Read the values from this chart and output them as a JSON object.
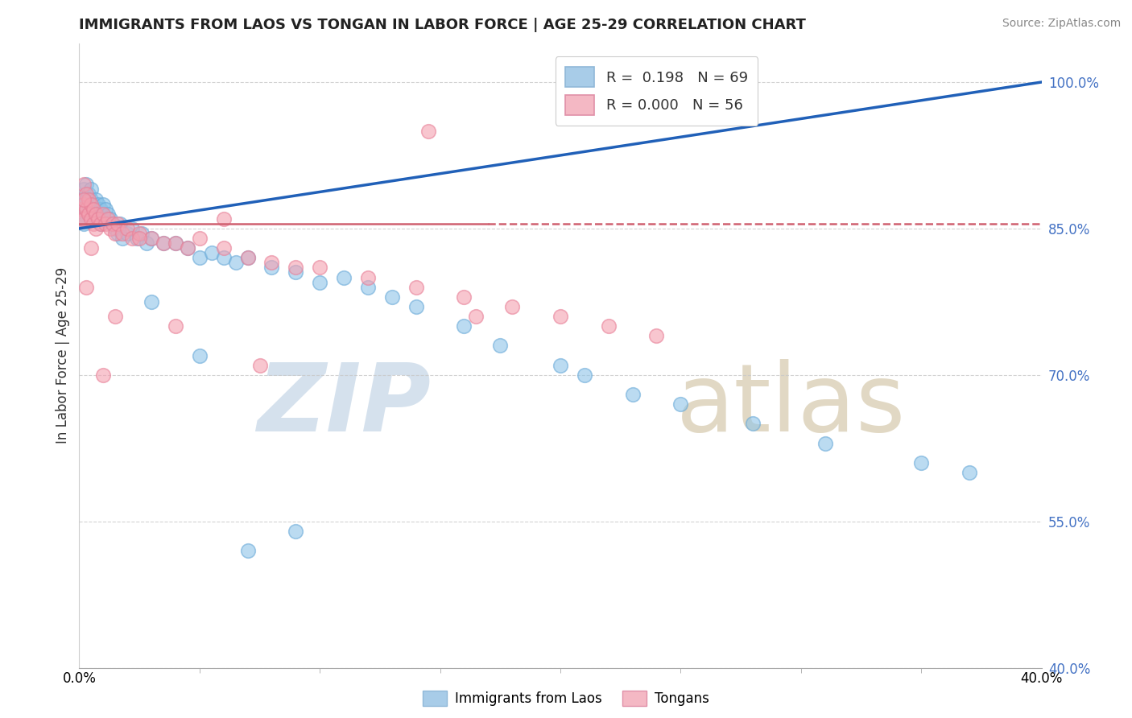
{
  "title": "IMMIGRANTS FROM LAOS VS TONGAN IN LABOR FORCE | AGE 25-29 CORRELATION CHART",
  "source": "Source: ZipAtlas.com",
  "ylabel": "In Labor Force | Age 25-29",
  "xlim": [
    0.0,
    0.4
  ],
  "ylim": [
    0.4,
    1.04
  ],
  "yticks": [
    0.4,
    0.55,
    0.7,
    0.85,
    1.0
  ],
  "yticklabels": [
    "40.0%",
    "55.0%",
    "70.0%",
    "85.0%",
    "100.0%"
  ],
  "blue_scatter_color": "#8ec4e8",
  "blue_scatter_edge": "#6aaad8",
  "pink_scatter_color": "#f4a0b0",
  "pink_scatter_edge": "#e88098",
  "blue_line_color": "#2060b8",
  "pink_line_color": "#d06070",
  "blue_legend_color": "#a8cce8",
  "pink_legend_color": "#f4b8c4",
  "grid_color": "#c8c8c8",
  "tick_color": "#4472c4",
  "r_label_color": "#4472c4",
  "laos_x": [
    0.001,
    0.001,
    0.001,
    0.002,
    0.002,
    0.002,
    0.002,
    0.003,
    0.003,
    0.003,
    0.004,
    0.004,
    0.004,
    0.005,
    0.005,
    0.005,
    0.006,
    0.006,
    0.007,
    0.007,
    0.008,
    0.008,
    0.009,
    0.009,
    0.01,
    0.01,
    0.011,
    0.012,
    0.013,
    0.014,
    0.015,
    0.016,
    0.017,
    0.018,
    0.02,
    0.022,
    0.024,
    0.026,
    0.028,
    0.03,
    0.035,
    0.04,
    0.045,
    0.05,
    0.055,
    0.06,
    0.065,
    0.07,
    0.08,
    0.09,
    0.1,
    0.11,
    0.12,
    0.13,
    0.14,
    0.16,
    0.175,
    0.2,
    0.21,
    0.23,
    0.25,
    0.28,
    0.31,
    0.35,
    0.37,
    0.09,
    0.07,
    0.05,
    0.03
  ],
  "laos_y": [
    0.88,
    0.87,
    0.86,
    0.89,
    0.875,
    0.865,
    0.855,
    0.895,
    0.88,
    0.87,
    0.885,
    0.875,
    0.865,
    0.89,
    0.88,
    0.87,
    0.875,
    0.865,
    0.88,
    0.87,
    0.875,
    0.86,
    0.87,
    0.855,
    0.875,
    0.86,
    0.87,
    0.865,
    0.86,
    0.855,
    0.85,
    0.845,
    0.855,
    0.84,
    0.845,
    0.85,
    0.84,
    0.845,
    0.835,
    0.84,
    0.835,
    0.835,
    0.83,
    0.82,
    0.825,
    0.82,
    0.815,
    0.82,
    0.81,
    0.805,
    0.795,
    0.8,
    0.79,
    0.78,
    0.77,
    0.75,
    0.73,
    0.71,
    0.7,
    0.68,
    0.67,
    0.65,
    0.63,
    0.61,
    0.6,
    0.54,
    0.52,
    0.72,
    0.775
  ],
  "tongan_x": [
    0.001,
    0.001,
    0.002,
    0.002,
    0.002,
    0.003,
    0.003,
    0.004,
    0.004,
    0.005,
    0.005,
    0.006,
    0.006,
    0.007,
    0.007,
    0.008,
    0.009,
    0.01,
    0.011,
    0.012,
    0.013,
    0.014,
    0.015,
    0.016,
    0.018,
    0.02,
    0.022,
    0.025,
    0.03,
    0.035,
    0.04,
    0.045,
    0.05,
    0.06,
    0.07,
    0.08,
    0.09,
    0.1,
    0.12,
    0.14,
    0.16,
    0.18,
    0.2,
    0.22,
    0.24,
    0.145,
    0.165,
    0.06,
    0.075,
    0.04,
    0.025,
    0.015,
    0.01,
    0.005,
    0.003,
    0.002
  ],
  "tongan_y": [
    0.87,
    0.86,
    0.895,
    0.875,
    0.86,
    0.885,
    0.87,
    0.88,
    0.865,
    0.875,
    0.86,
    0.87,
    0.855,
    0.865,
    0.85,
    0.86,
    0.855,
    0.865,
    0.855,
    0.86,
    0.85,
    0.855,
    0.845,
    0.855,
    0.845,
    0.85,
    0.84,
    0.845,
    0.84,
    0.835,
    0.835,
    0.83,
    0.84,
    0.83,
    0.82,
    0.815,
    0.81,
    0.81,
    0.8,
    0.79,
    0.78,
    0.77,
    0.76,
    0.75,
    0.74,
    0.95,
    0.76,
    0.86,
    0.71,
    0.75,
    0.84,
    0.76,
    0.7,
    0.83,
    0.79,
    0.88
  ],
  "blue_line_x0": 0.0,
  "blue_line_y0": 0.85,
  "blue_line_x1": 0.4,
  "blue_line_y1": 1.0,
  "pink_line_x0": 0.0,
  "pink_line_y0": 0.855,
  "pink_line_x1": 0.4,
  "pink_line_y1": 0.855
}
